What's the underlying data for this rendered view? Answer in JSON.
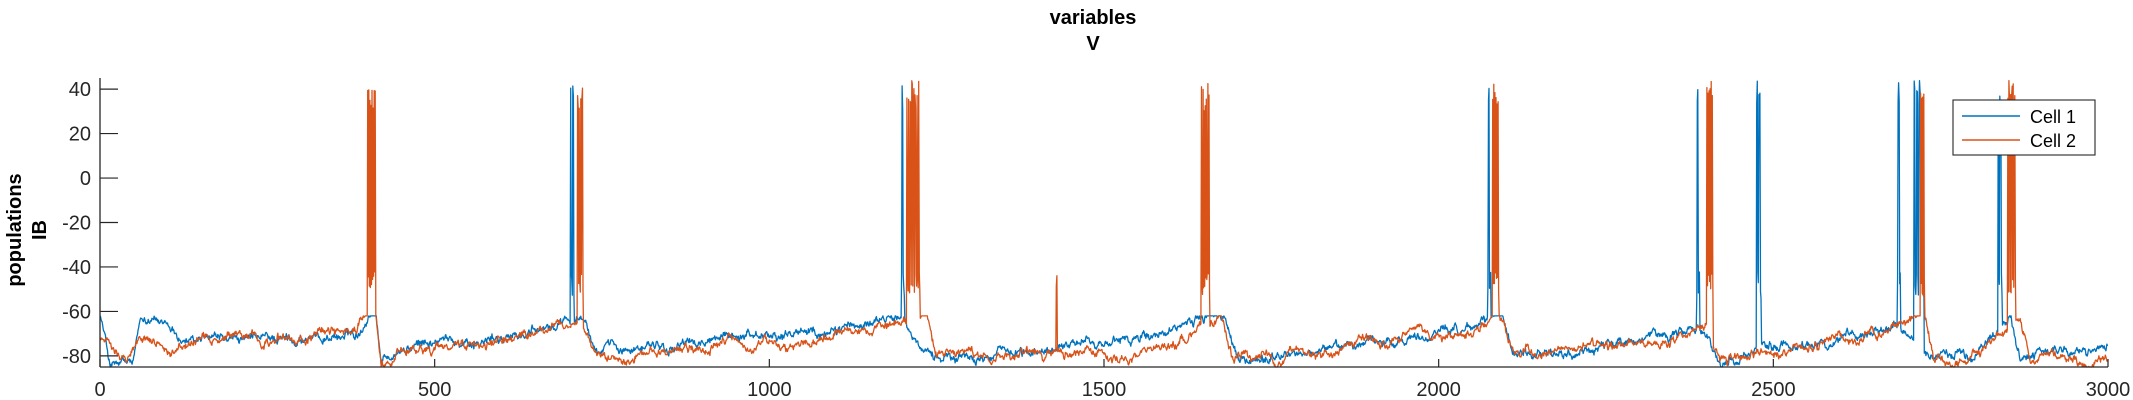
{
  "chart_data": {
    "type": "line",
    "title": [
      "variables",
      "V"
    ],
    "ylabel": [
      "populations",
      "IB"
    ],
    "xlabel": "",
    "xlim": [
      0,
      3000
    ],
    "ylim": [
      -85,
      45
    ],
    "xticks": [
      0,
      500,
      1000,
      1500,
      2000,
      2500,
      3000
    ],
    "yticks": [
      40,
      20,
      0,
      -20,
      -40,
      -60,
      -80
    ],
    "legend_position": "top-right",
    "grid": false,
    "baseline_range": [
      -85,
      -62
    ],
    "spike_peak": 44,
    "series": [
      {
        "name": "Cell 1",
        "color": "#0072BD",
        "baseline": [
          [
            0,
            -60
          ],
          [
            15,
            -84
          ],
          [
            50,
            -84
          ],
          [
            60,
            -66
          ],
          [
            80,
            -62
          ],
          [
            120,
            -74
          ],
          [
            200,
            -75
          ],
          [
            300,
            -72
          ],
          [
            385,
            -70
          ],
          [
            400,
            -62
          ],
          [
            410,
            -54
          ],
          [
            420,
            -80
          ],
          [
            500,
            -74
          ],
          [
            600,
            -72
          ],
          [
            680,
            -68
          ],
          [
            695,
            -62
          ],
          [
            725,
            -64
          ],
          [
            740,
            -78
          ],
          [
            900,
            -75
          ],
          [
            1100,
            -67
          ],
          [
            1180,
            -63
          ],
          [
            1200,
            -62
          ],
          [
            1215,
            -70
          ],
          [
            1250,
            -80
          ],
          [
            1400,
            -78
          ],
          [
            1500,
            -75
          ],
          [
            1600,
            -70
          ],
          [
            1640,
            -65
          ],
          [
            1660,
            -62
          ],
          [
            1680,
            -60
          ],
          [
            1700,
            -82
          ],
          [
            1800,
            -80
          ],
          [
            1900,
            -74
          ],
          [
            2000,
            -70
          ],
          [
            2060,
            -66
          ],
          [
            2085,
            -62
          ],
          [
            2095,
            -62
          ],
          [
            2110,
            -82
          ],
          [
            2300,
            -72
          ],
          [
            2380,
            -66
          ],
          [
            2400,
            -70
          ],
          [
            2420,
            -82
          ],
          [
            2500,
            -76
          ],
          [
            2600,
            -72
          ],
          [
            2680,
            -64
          ],
          [
            2700,
            -70
          ],
          [
            2720,
            -80
          ],
          [
            2800,
            -78
          ],
          [
            2840,
            -65
          ],
          [
            2855,
            -62
          ],
          [
            2870,
            -80
          ],
          [
            2950,
            -78
          ],
          [
            3000,
            -78
          ]
        ],
        "bursts": [
          [
            703,
            708,
            5
          ],
          [
            1197,
            1202,
            5
          ],
          [
            2073,
            2078,
            5
          ],
          [
            2385,
            2390,
            5
          ],
          [
            2475,
            2482,
            7
          ],
          [
            2685,
            2690,
            5
          ],
          [
            2710,
            2725,
            4
          ],
          [
            2836,
            2842,
            6
          ]
        ]
      },
      {
        "name": "Cell 2",
        "color": "#D95319",
        "baseline": [
          [
            0,
            -72
          ],
          [
            40,
            -80
          ],
          [
            60,
            -72
          ],
          [
            100,
            -76
          ],
          [
            200,
            -74
          ],
          [
            300,
            -72
          ],
          [
            385,
            -66
          ],
          [
            400,
            -58
          ],
          [
            410,
            -54
          ],
          [
            420,
            -82
          ],
          [
            500,
            -76
          ],
          [
            600,
            -74
          ],
          [
            700,
            -66
          ],
          [
            720,
            -64
          ],
          [
            740,
            -80
          ],
          [
            900,
            -76
          ],
          [
            1100,
            -72
          ],
          [
            1190,
            -65
          ],
          [
            1215,
            -64
          ],
          [
            1235,
            -62
          ],
          [
            1250,
            -82
          ],
          [
            1400,
            -78
          ],
          [
            1500,
            -78
          ],
          [
            1600,
            -76
          ],
          [
            1650,
            -66
          ],
          [
            1675,
            -60
          ],
          [
            1690,
            -82
          ],
          [
            1800,
            -80
          ],
          [
            1900,
            -74
          ],
          [
            2000,
            -72
          ],
          [
            2070,
            -68
          ],
          [
            2090,
            -64
          ],
          [
            2110,
            -80
          ],
          [
            2300,
            -74
          ],
          [
            2400,
            -66
          ],
          [
            2420,
            -80
          ],
          [
            2500,
            -77
          ],
          [
            2600,
            -74
          ],
          [
            2700,
            -68
          ],
          [
            2725,
            -62
          ],
          [
            2740,
            -82
          ],
          [
            2800,
            -78
          ],
          [
            2850,
            -68
          ],
          [
            2870,
            -64
          ],
          [
            2885,
            -82
          ],
          [
            2950,
            -82
          ],
          [
            3000,
            -82
          ]
        ],
        "bursts": [
          [
            400,
            412,
            8
          ],
          [
            713,
            722,
            7
          ],
          [
            1205,
            1225,
            8
          ],
          [
            1428,
            1430,
            2
          ],
          [
            1645,
            1658,
            9
          ],
          [
            2080,
            2090,
            6
          ],
          [
            2400,
            2410,
            6
          ],
          [
            2720,
            2726,
            4
          ],
          [
            2850,
            2862,
            6
          ]
        ]
      }
    ]
  }
}
